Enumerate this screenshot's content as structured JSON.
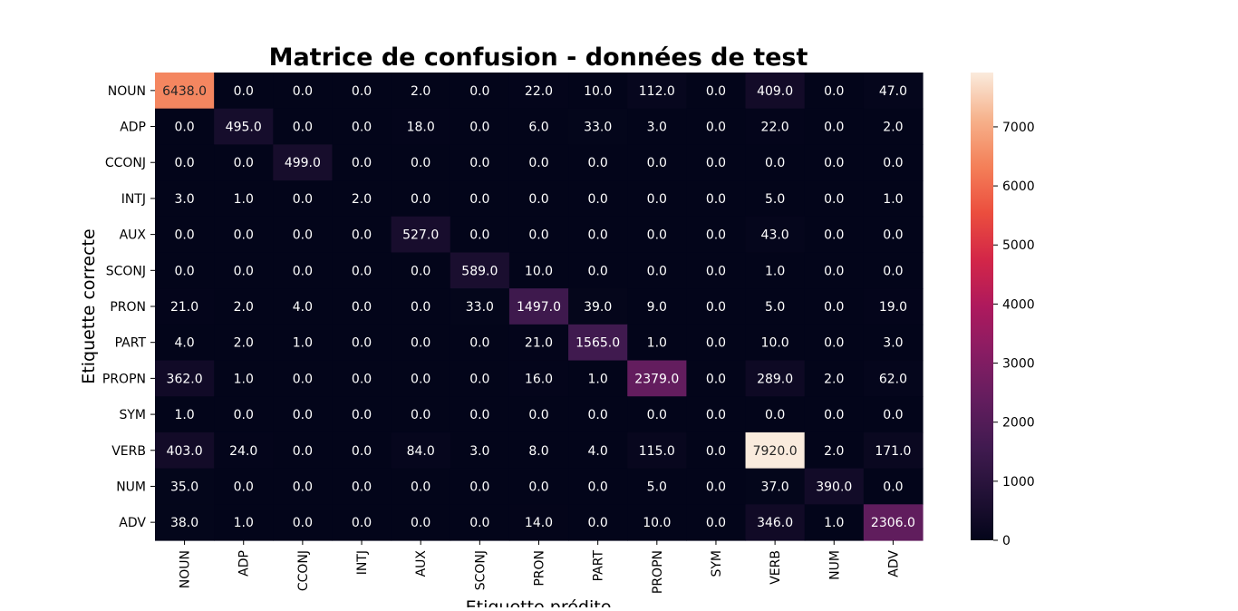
{
  "chart_data": {
    "type": "heatmap",
    "title": "Matrice de confusion - données de test",
    "xlabel": "Etiquette prédite",
    "ylabel": "Etiquette correcte",
    "x_labels": [
      "NOUN",
      "ADP",
      "CCONJ",
      "INTJ",
      "AUX",
      "SCONJ",
      "PRON",
      "PART",
      "PROPN",
      "SYM",
      "VERB",
      "NUM",
      "ADV"
    ],
    "y_labels": [
      "NOUN",
      "ADP",
      "CCONJ",
      "INTJ",
      "AUX",
      "SCONJ",
      "PRON",
      "PART",
      "PROPN",
      "SYM",
      "VERB",
      "NUM",
      "ADV"
    ],
    "values": [
      [
        6438,
        0,
        0,
        0,
        2,
        0,
        22,
        10,
        112,
        0,
        409,
        0,
        47
      ],
      [
        0,
        495,
        0,
        0,
        18,
        0,
        6,
        33,
        3,
        0,
        22,
        0,
        2
      ],
      [
        0,
        0,
        499,
        0,
        0,
        0,
        0,
        0,
        0,
        0,
        0,
        0,
        0
      ],
      [
        3,
        1,
        0,
        2,
        0,
        0,
        0,
        0,
        0,
        0,
        5,
        0,
        1
      ],
      [
        0,
        0,
        0,
        0,
        527,
        0,
        0,
        0,
        0,
        0,
        43,
        0,
        0
      ],
      [
        0,
        0,
        0,
        0,
        0,
        589,
        10,
        0,
        0,
        0,
        1,
        0,
        0
      ],
      [
        21,
        2,
        4,
        0,
        0,
        33,
        1497,
        39,
        9,
        0,
        5,
        0,
        19
      ],
      [
        4,
        2,
        1,
        0,
        0,
        0,
        21,
        1565,
        1,
        0,
        10,
        0,
        3
      ],
      [
        362,
        1,
        0,
        0,
        0,
        0,
        16,
        1,
        2379,
        0,
        289,
        2,
        62
      ],
      [
        1,
        0,
        0,
        0,
        0,
        0,
        0,
        0,
        0,
        0,
        0,
        0,
        0
      ],
      [
        403,
        24,
        0,
        0,
        84,
        3,
        8,
        4,
        115,
        0,
        7920,
        2,
        171
      ],
      [
        35,
        0,
        0,
        0,
        0,
        0,
        0,
        0,
        5,
        0,
        37,
        390,
        0
      ],
      [
        38,
        1,
        0,
        0,
        0,
        0,
        14,
        0,
        10,
        0,
        346,
        1,
        2306
      ]
    ],
    "value_format": "one-decimal",
    "vmin": 0,
    "vmax": 7920,
    "colormap": "rocket",
    "colorbar": {
      "ticks": [
        0,
        1000,
        2000,
        3000,
        4000,
        5000,
        6000,
        7000
      ]
    },
    "grid": false,
    "legend": "colorbar-right"
  }
}
